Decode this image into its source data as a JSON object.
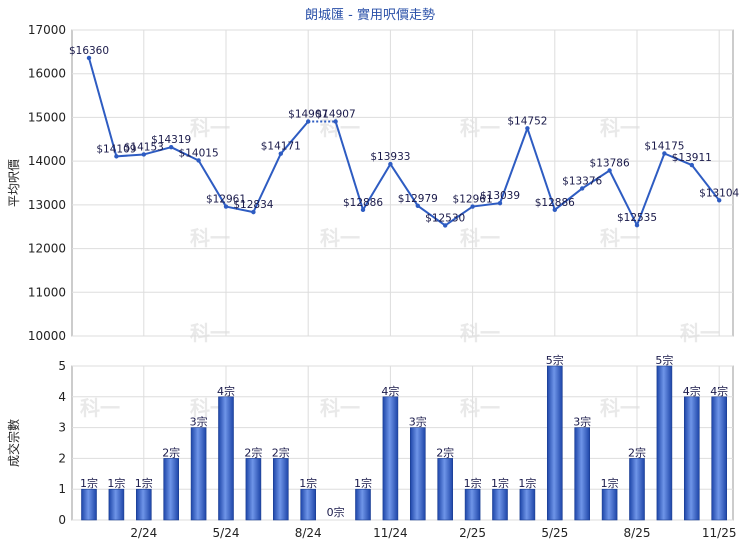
{
  "chart_data": [
    {
      "type": "line",
      "title": "朗城匯 - 實用呎價走勢",
      "ylabel": "平均呎價",
      "ylim": [
        10000,
        17000
      ],
      "yticks": [
        10000,
        11000,
        12000,
        13000,
        14000,
        15000,
        16000,
        17000
      ],
      "grid": true,
      "series": [
        {
          "color": "#2e5cc2",
          "points": [
            {
              "i": 0,
              "y": 16360,
              "label": "$16360"
            },
            {
              "i": 1,
              "y": 14109,
              "label": "$14109"
            },
            {
              "i": 2,
              "y": 14153,
              "label": "$14153"
            },
            {
              "i": 3,
              "y": 14319,
              "label": "$14319"
            },
            {
              "i": 4,
              "y": 14015,
              "label": "$14015"
            },
            {
              "i": 5,
              "y": 12961,
              "label": "$12961"
            },
            {
              "i": 6,
              "y": 12834,
              "label": "$12834"
            },
            {
              "i": 7,
              "y": 14171,
              "label": "$14171"
            },
            {
              "i": 8,
              "y": 14907,
              "label": "$14907"
            },
            {
              "i": 9,
              "y": 14907,
              "label": "$14907"
            },
            {
              "i": 10,
              "y": 12886,
              "label": "$12886"
            },
            {
              "i": 11,
              "y": 13933,
              "label": "$13933"
            },
            {
              "i": 12,
              "y": 12979,
              "label": "$12979"
            },
            {
              "i": 13,
              "y": 12530,
              "label": "$12530"
            },
            {
              "i": 14,
              "y": 12961,
              "label": "$12961"
            },
            {
              "i": 15,
              "y": 13039,
              "label": "$13039"
            },
            {
              "i": 16,
              "y": 14752,
              "label": "$14752"
            },
            {
              "i": 17,
              "y": 12886,
              "label": "$12886"
            },
            {
              "i": 18,
              "y": 13376,
              "label": "$13376"
            },
            {
              "i": 19,
              "y": 13786,
              "label": "$13786"
            },
            {
              "i": 20,
              "y": 12535,
              "label": "$12535"
            },
            {
              "i": 21,
              "y": 14175,
              "label": "$14175"
            },
            {
              "i": 22,
              "y": 13911,
              "label": "$13911"
            },
            {
              "i": 23,
              "y": 13104,
              "label": "$13104"
            }
          ],
          "dotted_segments": [
            [
              8,
              9
            ]
          ]
        }
      ]
    },
    {
      "type": "bar",
      "ylabel": "成交宗數",
      "ylim": [
        0,
        5
      ],
      "yticks": [
        0,
        1,
        2,
        3,
        4,
        5
      ],
      "grid": true,
      "xtick_labels": [
        {
          "i": 2,
          "label": "2/24"
        },
        {
          "i": 5,
          "label": "5/24"
        },
        {
          "i": 8,
          "label": "8/24"
        },
        {
          "i": 11,
          "label": "11/24"
        },
        {
          "i": 14,
          "label": "2/25"
        },
        {
          "i": 17,
          "label": "5/25"
        },
        {
          "i": 20,
          "label": "8/25"
        },
        {
          "i": 23,
          "label": "11/25"
        }
      ],
      "values": [
        1,
        1,
        1,
        2,
        3,
        4,
        2,
        2,
        1,
        0,
        1,
        4,
        3,
        2,
        1,
        1,
        1,
        5,
        3,
        1,
        2,
        5,
        4,
        4
      ],
      "labels": [
        "1宗",
        "1宗",
        "1宗",
        "2宗",
        "3宗",
        "4宗",
        "2宗",
        "2宗",
        "1宗",
        "0宗",
        "1宗",
        "4宗",
        "3宗",
        "2宗",
        "1宗",
        "1宗",
        "1宗",
        "5宗",
        "3宗",
        "1宗",
        "2宗",
        "5宗",
        "4宗",
        "4宗"
      ],
      "color": "#3060c8"
    }
  ]
}
